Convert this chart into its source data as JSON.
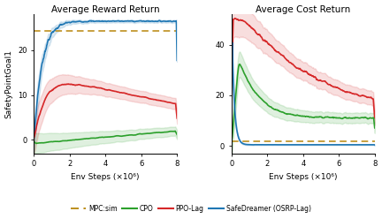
{
  "fig_width": 4.32,
  "fig_height": 2.48,
  "dpi": 100,
  "title_left": "Average Reward Return",
  "title_right": "Average Cost Return",
  "ylabel": "SafetyPointGoal1",
  "xlabel": "Env Steps (×10⁶)",
  "xlim": [
    0,
    8
  ],
  "reward_ylim": [
    -3,
    28
  ],
  "cost_ylim": [
    -3,
    52
  ],
  "reward_yticks": [
    0,
    10,
    20
  ],
  "cost_yticks": [
    0,
    20,
    40
  ],
  "mpc_reward": 24.3,
  "mpc_cost": 1.8,
  "mpc_color": "#b8860b",
  "cpo_color": "#2ca02c",
  "ppo_color": "#d62728",
  "safe_color": "#1f77b4",
  "legend_labels": [
    "MPC:sim",
    "CPO",
    "PPO-Lag",
    "SafeDreamer (OSRP-Lag)"
  ],
  "background_color": "#ffffff",
  "n_points": 400,
  "seed": 7
}
